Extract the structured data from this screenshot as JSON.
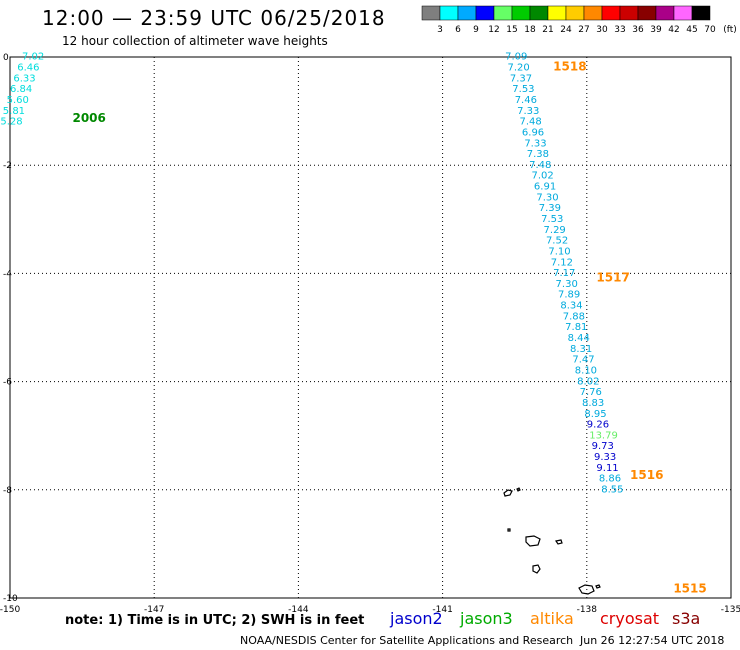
{
  "header": {
    "title": "12:00 — 23:59 UTC 06/25/2018",
    "subtitle": "12 hour collection of altimeter wave heights"
  },
  "colorbar": {
    "unit": "(ft)",
    "bins": [
      {
        "label": "3",
        "color": "#7f7f7f"
      },
      {
        "label": "6",
        "color": "#00ffff"
      },
      {
        "label": "9",
        "color": "#00aaff"
      },
      {
        "label": "12",
        "color": "#0000ff"
      },
      {
        "label": "15",
        "color": "#66ff66"
      },
      {
        "label": "18",
        "color": "#00cc00"
      },
      {
        "label": "21",
        "color": "#008800"
      },
      {
        "label": "24",
        "color": "#ffff00"
      },
      {
        "label": "27",
        "color": "#ffcc00"
      },
      {
        "label": "30",
        "color": "#ff8800"
      },
      {
        "label": "33",
        "color": "#ff0000"
      },
      {
        "label": "36",
        "color": "#cc0000"
      },
      {
        "label": "39",
        "color": "#880000"
      },
      {
        "label": "42",
        "color": "#aa0088"
      },
      {
        "label": "45",
        "color": "#ff66ff"
      },
      {
        "label": "70",
        "color": "#000000"
      }
    ]
  },
  "map": {
    "lon_ticks": [
      "-150",
      "-147",
      "-144",
      "-141",
      "-138",
      "-135"
    ],
    "lat_ticks": [
      "0",
      "-2",
      "-4",
      "-6",
      "-8",
      "-10"
    ],
    "lon_range": [
      -150,
      -135
    ],
    "lat_range": [
      -10,
      0
    ],
    "pass_labels": [
      {
        "text": "2006",
        "lon": -148.7,
        "lat": -1.2,
        "color": "#008800"
      },
      {
        "text": "1518",
        "lon": -138.7,
        "lat": -0.25,
        "color": "#ff8800"
      },
      {
        "text": "1517",
        "lon": -137.8,
        "lat": -4.15,
        "color": "#ff8800"
      },
      {
        "text": "1516",
        "lon": -137.1,
        "lat": -7.8,
        "color": "#ff8800"
      },
      {
        "text": "1515",
        "lon": -136.2,
        "lat": -9.9,
        "color": "#ff8800"
      }
    ],
    "tracks": [
      {
        "name": "2006",
        "color": "#00dddd",
        "points": [
          {
            "v": "7.02",
            "lon": -149.75,
            "lat": -0.05
          },
          {
            "v": "6.46",
            "lon": -149.85,
            "lat": -0.25
          },
          {
            "v": "6.33",
            "lon": -149.93,
            "lat": -0.45
          },
          {
            "v": "6.84",
            "lon": -150.0,
            "lat": -0.65
          },
          {
            "v": "5.60",
            "lon": -150.07,
            "lat": -0.85
          },
          {
            "v": "5.81",
            "lon": -150.15,
            "lat": -1.05
          },
          {
            "v": "5.28",
            "lon": -150.2,
            "lat": -1.25
          }
        ]
      },
      {
        "name": "1518",
        "color": "#00aadd",
        "points": [
          {
            "v": "7.09",
            "lon": -139.7,
            "lat": -0.05
          },
          {
            "v": "7.20",
            "lon": -139.65,
            "lat": -0.25
          },
          {
            "v": "7.37",
            "lon": -139.6,
            "lat": -0.45
          },
          {
            "v": "7.53",
            "lon": -139.55,
            "lat": -0.65
          },
          {
            "v": "7.46",
            "lon": -139.5,
            "lat": -0.85
          },
          {
            "v": "7.33",
            "lon": -139.45,
            "lat": -1.05
          },
          {
            "v": "7.48",
            "lon": -139.4,
            "lat": -1.25
          },
          {
            "v": "6.96",
            "lon": -139.35,
            "lat": -1.45
          },
          {
            "v": "7.33",
            "lon": -139.3,
            "lat": -1.65
          },
          {
            "v": "7.38",
            "lon": -139.25,
            "lat": -1.85
          },
          {
            "v": "7.48",
            "lon": -139.2,
            "lat": -2.05
          },
          {
            "v": "7.02",
            "lon": -139.15,
            "lat": -2.25
          },
          {
            "v": "6.91",
            "lon": -139.1,
            "lat": -2.45
          },
          {
            "v": "7.30",
            "lon": -139.05,
            "lat": -2.65
          },
          {
            "v": "7.39",
            "lon": -139.0,
            "lat": -2.85
          },
          {
            "v": "7.53",
            "lon": -138.95,
            "lat": -3.05
          }
        ]
      },
      {
        "name": "1517",
        "color": "#00aadd",
        "points": [
          {
            "v": "7.29",
            "lon": -138.9,
            "lat": -3.25
          },
          {
            "v": "7.52",
            "lon": -138.85,
            "lat": -3.45
          },
          {
            "v": "7.10",
            "lon": -138.8,
            "lat": -3.65
          },
          {
            "v": "7.12",
            "lon": -138.75,
            "lat": -3.85
          },
          {
            "v": "7.17",
            "lon": -138.7,
            "lat": -4.05
          },
          {
            "v": "7.30",
            "lon": -138.65,
            "lat": -4.25
          },
          {
            "v": "7.89",
            "lon": -138.6,
            "lat": -4.45
          },
          {
            "v": "8.34",
            "lon": -138.55,
            "lat": -4.65
          },
          {
            "v": "7.88",
            "lon": -138.5,
            "lat": -4.85
          },
          {
            "v": "7.81",
            "lon": -138.45,
            "lat": -5.05
          },
          {
            "v": "8.44",
            "lon": -138.4,
            "lat": -5.25
          },
          {
            "v": "8.31",
            "lon": -138.35,
            "lat": -5.45
          },
          {
            "v": "7.47",
            "lon": -138.3,
            "lat": -5.65
          },
          {
            "v": "8.10",
            "lon": -138.25,
            "lat": -5.85
          },
          {
            "v": "8.02",
            "lon": -138.2,
            "lat": -6.05
          }
        ]
      },
      {
        "name": "1516",
        "color": "#00aadd",
        "points": [
          {
            "v": "7.76",
            "lon": -138.15,
            "lat": -6.25
          },
          {
            "v": "8.83",
            "lon": -138.1,
            "lat": -6.45
          },
          {
            "v": "8.95",
            "lon": -138.05,
            "lat": -6.65
          }
        ]
      },
      {
        "name": "1516b",
        "color": "#0000cc",
        "points": [
          {
            "v": "9.26",
            "lon": -138.0,
            "lat": -6.85
          }
        ]
      },
      {
        "name": "1516c",
        "color": "#66ee66",
        "points": [
          {
            "v": "13.79",
            "lon": -137.95,
            "lat": -7.05
          }
        ]
      },
      {
        "name": "1515",
        "color": "#0000cc",
        "points": [
          {
            "v": "9.73",
            "lon": -137.9,
            "lat": -7.25
          },
          {
            "v": "9.33",
            "lon": -137.85,
            "lat": -7.45
          },
          {
            "v": "9.11",
            "lon": -137.8,
            "lat": -7.65
          }
        ]
      },
      {
        "name": "1515b",
        "color": "#00aadd",
        "points": [
          {
            "v": "8.86",
            "lon": -137.75,
            "lat": -7.85
          },
          {
            "v": "8.55",
            "lon": -137.7,
            "lat": -8.05
          }
        ]
      }
    ]
  },
  "legend": {
    "note": "note:  1) Time is in UTC;  2) SWH is in feet",
    "satellites": [
      {
        "name": "jason2",
        "color": "#0000cc"
      },
      {
        "name": "jason3",
        "color": "#00aa00"
      },
      {
        "name": "altika",
        "color": "#ff8800"
      },
      {
        "name": "cryosat",
        "color": "#dd0000"
      },
      {
        "name": "s3a",
        "color": "#880000"
      }
    ]
  },
  "footer": {
    "credit": "NOAA/NESDIS Center for Satellite Applications and Research",
    "timestamp": "Jun 26 12:27:54 UTC 2018"
  }
}
